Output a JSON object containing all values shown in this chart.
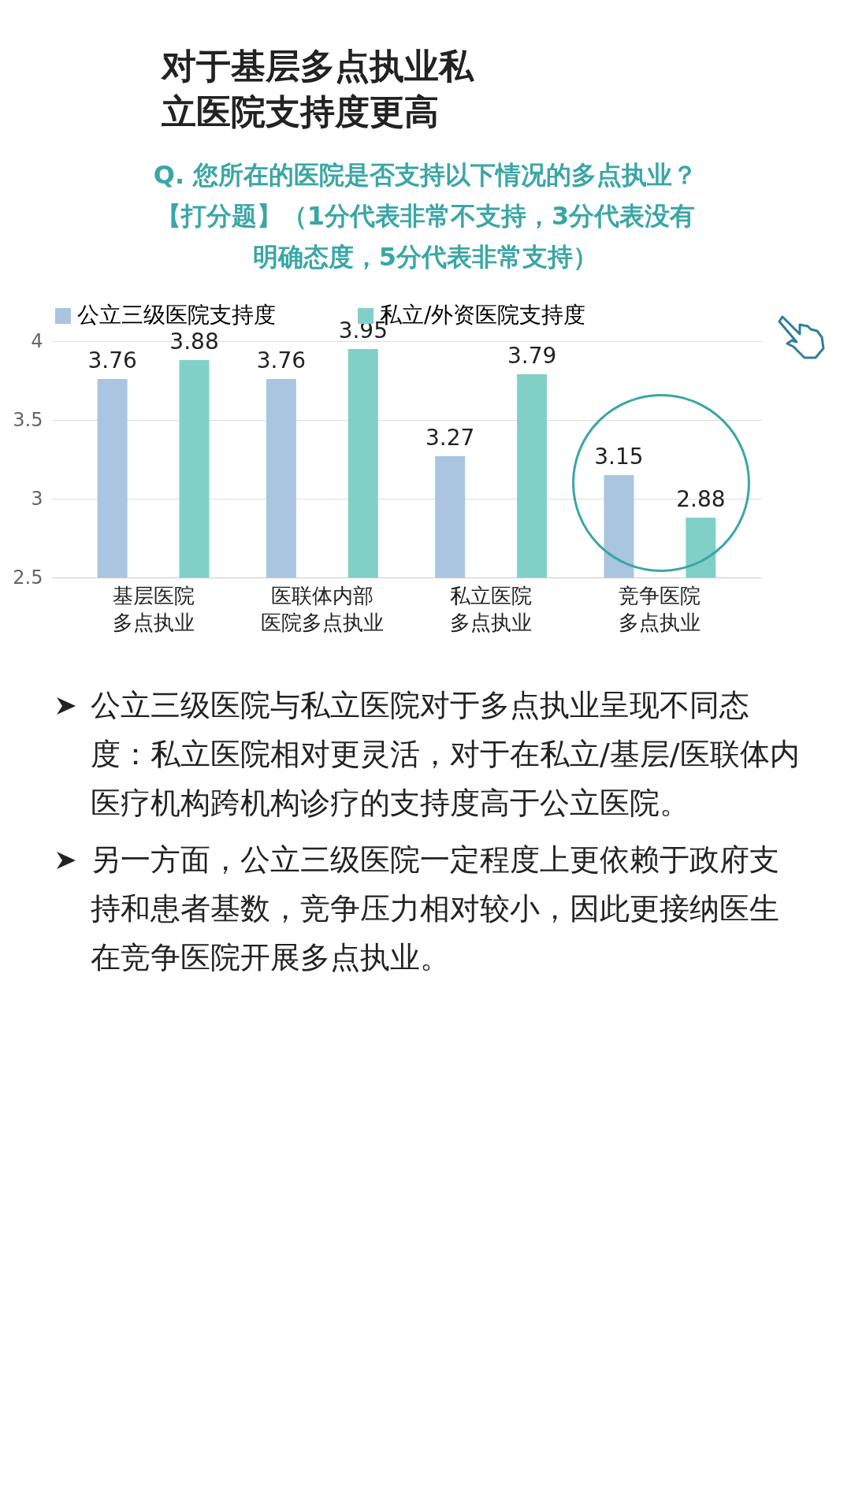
{
  "chart_data": {
    "type": "bar",
    "title": "对于基层多点执业私立医院支持度更高",
    "subtitle": "Q. 您所在的医院是否支持以下情况的多点执业？【打分题】（1分代表非常不支持，3分代表没有明确态度，5分代表非常支持）",
    "categories": [
      "基层医院多点执业",
      "医联体内部医院多点执业",
      "私立医院多点执业",
      "竞争医院多点执业"
    ],
    "series": [
      {
        "name": "公立三级医院支持度",
        "color": "#a9c5e0",
        "values": [
          3.76,
          3.76,
          3.27,
          3.15
        ]
      },
      {
        "name": "私立/外资医院支持度",
        "color": "#80d0c8",
        "values": [
          3.88,
          3.95,
          3.79,
          2.88
        ]
      }
    ],
    "ylim": [
      2.5,
      4
    ],
    "yticks": [
      2.5,
      3,
      3.5,
      4
    ],
    "grid": "y",
    "legend": "top",
    "data_labels": true,
    "annotations": [
      "公立三级医院与私立医院对于多点执业呈现不同态度：私立医院相对更灵活，对于在私立/基层/医联体内医疗机构跨机构诊疗的支持度高于公立医院。",
      "另一方面，公立三级医院一定程度上更依赖于政府支持和患者基数，竞争压力相对较小，因此更接纳医生在竞争医院开展多点执业。"
    ]
  }
}
